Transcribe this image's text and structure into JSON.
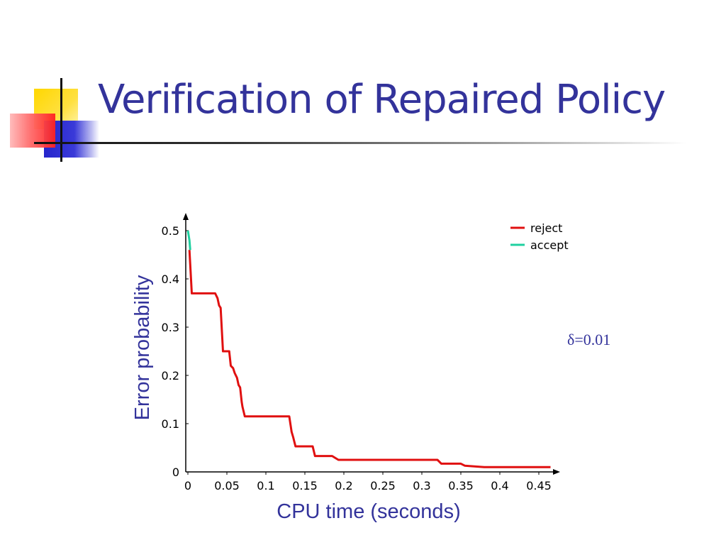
{
  "slide": {
    "title": "Verification of Repaired Policy",
    "annotation": "δ=0.01"
  },
  "colors": {
    "title": "#33339b",
    "reject": "#e01010",
    "accept": "#20d0a0"
  },
  "chart_data": {
    "type": "line",
    "title": "",
    "xlabel": "CPU time (seconds)",
    "ylabel": "Error probability",
    "xlim": [
      0,
      0.47
    ],
    "ylim": [
      0,
      0.53
    ],
    "x_ticks": [
      "0",
      "0.05",
      "0.1",
      "0.15",
      "0.2",
      "0.25",
      "0.3",
      "0.35",
      "0.4",
      "0.45"
    ],
    "y_ticks": [
      "0",
      "0.1",
      "0.2",
      "0.3",
      "0.4",
      "0.5"
    ],
    "grid": false,
    "legend_position": "top-right",
    "series": [
      {
        "name": "reject",
        "x": [
          0.002,
          0.004,
          0.005,
          0.02,
          0.035,
          0.038,
          0.04,
          0.042,
          0.045,
          0.05,
          0.053,
          0.055,
          0.058,
          0.06,
          0.063,
          0.065,
          0.067,
          0.069,
          0.07,
          0.073,
          0.08,
          0.13,
          0.133,
          0.135,
          0.138,
          0.16,
          0.163,
          0.185,
          0.19,
          0.193,
          0.32,
          0.325,
          0.35,
          0.355,
          0.38,
          0.465
        ],
        "y": [
          0.46,
          0.4,
          0.37,
          0.37,
          0.37,
          0.36,
          0.345,
          0.34,
          0.25,
          0.25,
          0.25,
          0.22,
          0.215,
          0.205,
          0.195,
          0.18,
          0.175,
          0.145,
          0.135,
          0.115,
          0.115,
          0.115,
          0.083,
          0.072,
          0.053,
          0.053,
          0.033,
          0.033,
          0.028,
          0.025,
          0.025,
          0.017,
          0.017,
          0.013,
          0.01,
          0.01
        ]
      },
      {
        "name": "accept",
        "x": [
          0,
          0.002,
          0.003
        ],
        "y": [
          0.5,
          0.48,
          0.46
        ]
      }
    ]
  }
}
